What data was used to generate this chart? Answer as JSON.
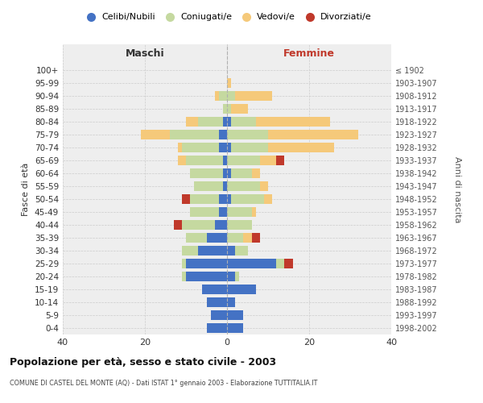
{
  "age_groups": [
    "0-4",
    "5-9",
    "10-14",
    "15-19",
    "20-24",
    "25-29",
    "30-34",
    "35-39",
    "40-44",
    "45-49",
    "50-54",
    "55-59",
    "60-64",
    "65-69",
    "70-74",
    "75-79",
    "80-84",
    "85-89",
    "90-94",
    "95-99",
    "100+"
  ],
  "birth_years": [
    "1998-2002",
    "1993-1997",
    "1988-1992",
    "1983-1987",
    "1978-1982",
    "1973-1977",
    "1968-1972",
    "1963-1967",
    "1958-1962",
    "1953-1957",
    "1948-1952",
    "1943-1947",
    "1938-1942",
    "1933-1937",
    "1928-1932",
    "1923-1927",
    "1918-1922",
    "1913-1917",
    "1908-1912",
    "1903-1907",
    "≤ 1902"
  ],
  "males": {
    "celibi": [
      5,
      4,
      5,
      6,
      10,
      10,
      7,
      5,
      3,
      2,
      2,
      1,
      1,
      1,
      2,
      2,
      1,
      0,
      0,
      0,
      0
    ],
    "coniugati": [
      0,
      0,
      0,
      0,
      1,
      1,
      4,
      5,
      8,
      7,
      7,
      7,
      8,
      9,
      9,
      12,
      6,
      1,
      2,
      0,
      0
    ],
    "vedovi": [
      0,
      0,
      0,
      0,
      0,
      0,
      0,
      0,
      0,
      0,
      0,
      0,
      0,
      2,
      1,
      7,
      3,
      0,
      1,
      0,
      0
    ],
    "divorziati": [
      0,
      0,
      0,
      0,
      0,
      0,
      0,
      0,
      2,
      0,
      2,
      0,
      0,
      0,
      0,
      0,
      0,
      0,
      0,
      0,
      0
    ]
  },
  "females": {
    "nubili": [
      4,
      4,
      2,
      7,
      2,
      12,
      2,
      0,
      0,
      0,
      1,
      0,
      1,
      0,
      1,
      0,
      1,
      0,
      0,
      0,
      0
    ],
    "coniugate": [
      0,
      0,
      0,
      0,
      1,
      2,
      3,
      4,
      6,
      6,
      8,
      8,
      5,
      8,
      9,
      10,
      6,
      1,
      2,
      0,
      0
    ],
    "vedove": [
      0,
      0,
      0,
      0,
      0,
      0,
      0,
      2,
      0,
      1,
      2,
      2,
      2,
      4,
      16,
      22,
      18,
      4,
      9,
      1,
      0
    ],
    "divorziate": [
      0,
      0,
      0,
      0,
      0,
      2,
      0,
      2,
      0,
      0,
      0,
      0,
      0,
      2,
      0,
      0,
      0,
      0,
      0,
      0,
      0
    ]
  },
  "colors": {
    "celibi_nubili": "#4472c4",
    "coniugati_e": "#c5d9a0",
    "vedovi_e": "#f5c97a",
    "divorziati_e": "#c0392b"
  },
  "xlim": [
    -40,
    40
  ],
  "xticks": [
    -40,
    -20,
    0,
    20,
    40
  ],
  "xticklabels": [
    "40",
    "20",
    "0",
    "20",
    "40"
  ],
  "title": "Popolazione per età, sesso e stato civile - 2003",
  "subtitle": "COMUNE DI CASTEL DEL MONTE (AQ) - Dati ISTAT 1° gennaio 2003 - Elaborazione TUTTITALIA.IT",
  "ylabel": "Fasce di età",
  "ylabel2": "Anni di nascita",
  "legend_labels": [
    "Celibi/Nubili",
    "Coniugati/e",
    "Vedovi/e",
    "Divorziati/e"
  ],
  "maschi_label": "Maschi",
  "femmine_label": "Femmine",
  "bg_color": "#eeeeee"
}
